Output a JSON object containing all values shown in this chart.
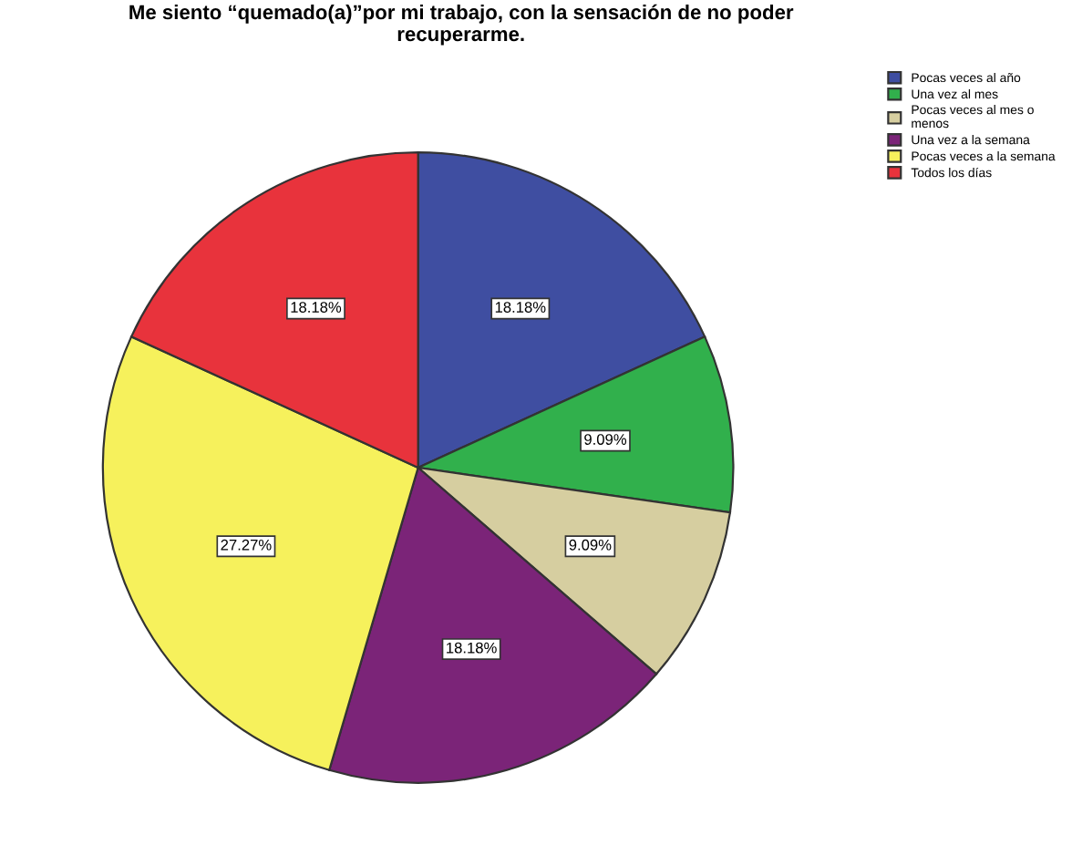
{
  "chart_data": {
    "type": "pie",
    "title": "Me siento “quemado(a)”por mi trabajo, con la sensación de no poder\nrecuperarme.",
    "categories": [
      "Pocas veces al año",
      "Una vez al mes",
      "Pocas veces al mes o\nmenos",
      "Una vez a la semana",
      "Pocas veces a la semana",
      "Todos los días"
    ],
    "values": [
      18.18,
      9.09,
      9.09,
      18.18,
      27.27,
      18.18
    ],
    "colors": [
      "#3f4ea1",
      "#31b04c",
      "#d6cea0",
      "#7b2478",
      "#f6f15c",
      "#e8333c"
    ],
    "value_labels": [
      "18.18%",
      "9.09%",
      "9.09%",
      "18.18%",
      "27.27%",
      "18.18%"
    ],
    "legend": "top right"
  }
}
